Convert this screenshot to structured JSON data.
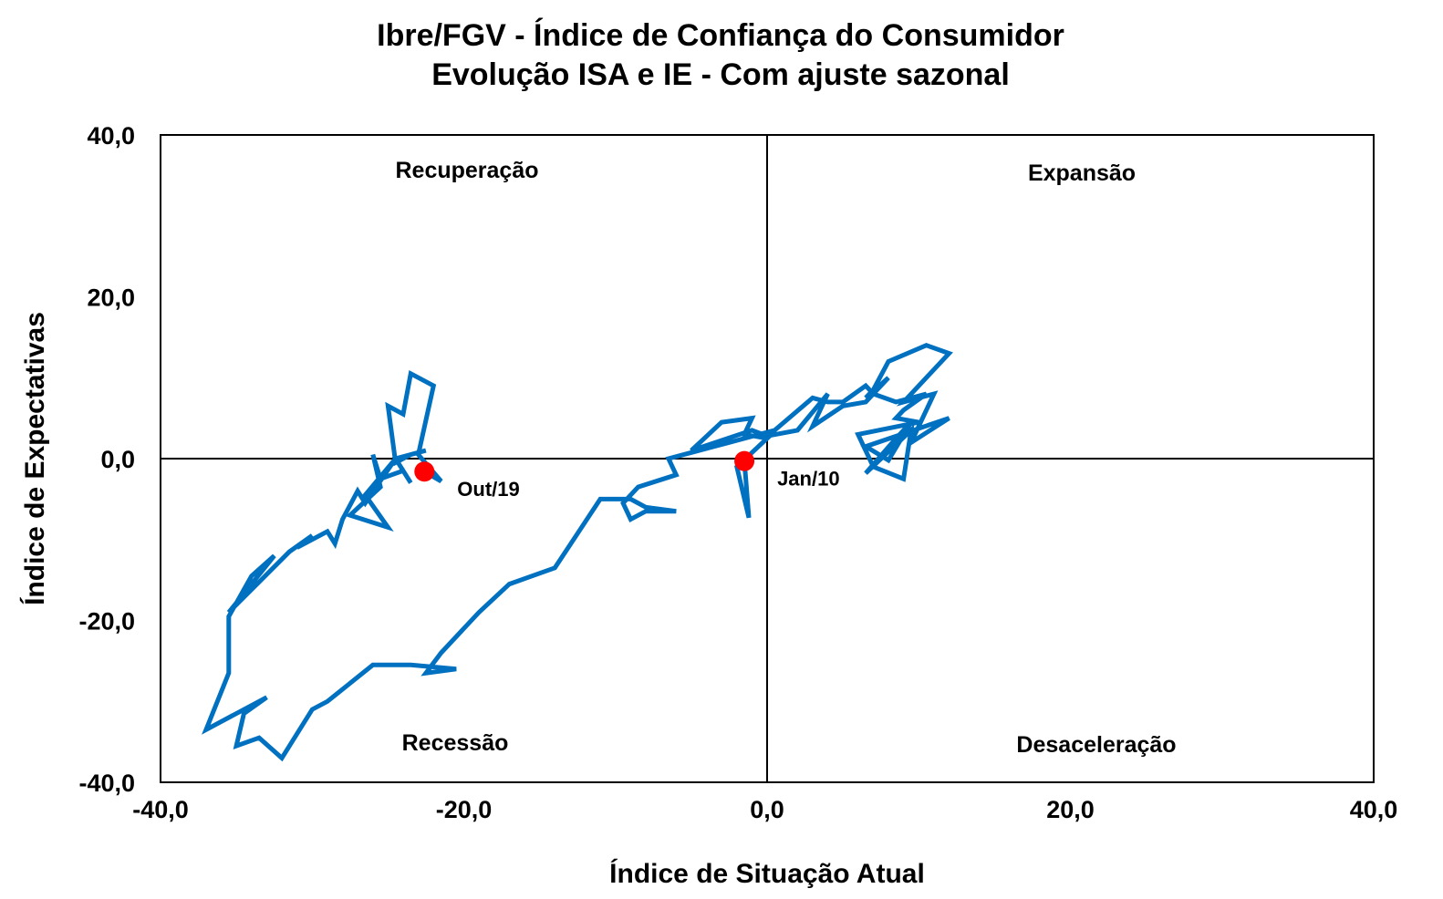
{
  "chart_data": {
    "type": "line",
    "title": "Ibre/FGV - Índice de Confiança do Consumidor",
    "subtitle": "Evolução ISA e IE - Com ajuste sazonal",
    "xlabel": "Índice de Situação Atual",
    "ylabel": "Índice de Expectativas",
    "xlim": [
      -40,
      40
    ],
    "ylim": [
      -40,
      40
    ],
    "x_ticks": [
      "-40,0",
      "-20,0",
      "0,0",
      "20,0",
      "40,0"
    ],
    "y_ticks": [
      "40,0",
      "20,0",
      "0,0",
      "-20,0",
      "-40,0"
    ],
    "grid": false,
    "line_color": "#0070C0",
    "highlight_color": "#FF0000",
    "quadrants": {
      "top_left": "Recuperação",
      "top_right": "Expansão",
      "bottom_left": "Recessão",
      "bottom_right": "Desaceleração"
    },
    "highlighted_points": [
      {
        "label": "Jan/10",
        "x": -1.5,
        "y": -0.3
      },
      {
        "label": "Out/19",
        "x": -22.6,
        "y": -1.6
      }
    ],
    "series": [
      {
        "points": [
          [
            -1.5,
            -0.3
          ],
          [
            -1.2,
            -7.3
          ],
          [
            -2.0,
            -1.0
          ],
          [
            0.0,
            2.5
          ],
          [
            -1.5,
            3.0
          ],
          [
            -1.0,
            5.0
          ],
          [
            -3.0,
            4.5
          ],
          [
            -5.0,
            1.0
          ],
          [
            -1.0,
            3.5
          ],
          [
            0.0,
            2.8
          ],
          [
            2.0,
            3.5
          ],
          [
            4.0,
            8.0
          ],
          [
            3.0,
            4.0
          ],
          [
            5.0,
            6.5
          ],
          [
            6.5,
            7.0
          ],
          [
            8.0,
            10.0
          ],
          [
            6.5,
            7.5
          ],
          [
            7.0,
            8.5
          ],
          [
            8.0,
            12.0
          ],
          [
            10.5,
            14.0
          ],
          [
            12.0,
            13.0
          ],
          [
            9.0,
            7.0
          ],
          [
            11.0,
            8.0
          ],
          [
            9.5,
            2.0
          ],
          [
            12.0,
            5.0
          ],
          [
            6.5,
            1.5
          ],
          [
            8.0,
            -0.2
          ],
          [
            9.5,
            4.5
          ],
          [
            8.5,
            2.5
          ],
          [
            6.5,
            -1.8
          ],
          [
            9.5,
            3.5
          ],
          [
            9.0,
            -2.5
          ],
          [
            7.0,
            -1.0
          ],
          [
            6.0,
            3.0
          ],
          [
            10.0,
            4.5
          ],
          [
            8.5,
            5.0
          ],
          [
            9.0,
            6.0
          ],
          [
            10.5,
            8.0
          ],
          [
            8.5,
            7.0
          ],
          [
            7.0,
            8.0
          ],
          [
            6.5,
            9.0
          ],
          [
            5.0,
            7.0
          ],
          [
            4.0,
            7.0
          ],
          [
            3.0,
            7.5
          ],
          [
            0.5,
            3.5
          ],
          [
            -2.5,
            2.0
          ],
          [
            -3.5,
            1.5
          ],
          [
            -6.5,
            0.0
          ],
          [
            -6.0,
            -2.0
          ],
          [
            -8.5,
            -3.5
          ],
          [
            -9.5,
            -5.5
          ],
          [
            -9.0,
            -7.5
          ],
          [
            -8.0,
            -6.5
          ],
          [
            -6.0,
            -6.5
          ],
          [
            -8.0,
            -6.0
          ],
          [
            -9.0,
            -5.0
          ],
          [
            -10.0,
            -5.0
          ],
          [
            -11.0,
            -5.0
          ],
          [
            -14.0,
            -13.5
          ],
          [
            -17.0,
            -15.5
          ],
          [
            -19.0,
            -19.0
          ],
          [
            -21.5,
            -24.0
          ],
          [
            -22.5,
            -26.5
          ],
          [
            -20.5,
            -26.0
          ],
          [
            -23.5,
            -25.5
          ],
          [
            -26.0,
            -25.5
          ],
          [
            -29.0,
            -30.0
          ],
          [
            -30.0,
            -31.0
          ],
          [
            -32.0,
            -37.0
          ],
          [
            -33.5,
            -34.5
          ],
          [
            -35.0,
            -35.5
          ],
          [
            -34.5,
            -31.5
          ],
          [
            -33.0,
            -29.5
          ],
          [
            -37.0,
            -33.5
          ],
          [
            -35.5,
            -26.5
          ],
          [
            -35.5,
            -19.5
          ],
          [
            -34.0,
            -14.5
          ],
          [
            -32.5,
            -12.0
          ],
          [
            -35.5,
            -19.0
          ],
          [
            -31.5,
            -11.5
          ],
          [
            -30.0,
            -9.5
          ],
          [
            -31.0,
            -11.0
          ],
          [
            -29.0,
            -9.0
          ],
          [
            -28.5,
            -10.5
          ],
          [
            -28.0,
            -7.5
          ],
          [
            -27.0,
            -4.0
          ],
          [
            -26.5,
            -5.5
          ],
          [
            -24.5,
            0.0
          ],
          [
            -26.5,
            -4.5
          ],
          [
            -25.0,
            -8.5
          ],
          [
            -27.5,
            -7.0
          ],
          [
            -25.5,
            -3.5
          ],
          [
            -26.0,
            0.5
          ],
          [
            -25.5,
            -2.5
          ],
          [
            -24.0,
            -1.5
          ],
          [
            -23.5,
            -3.0
          ],
          [
            -24.5,
            0.0
          ],
          [
            -22.5,
            1.0
          ],
          [
            -23.5,
            0.5
          ],
          [
            -24.5,
            -0.5
          ],
          [
            -25.0,
            6.5
          ],
          [
            -24.0,
            5.5
          ],
          [
            -23.5,
            10.5
          ],
          [
            -22.0,
            9.0
          ],
          [
            -23.0,
            0.5
          ],
          [
            -21.5,
            -2.8
          ],
          [
            -22.6,
            -1.6
          ]
        ]
      }
    ]
  }
}
